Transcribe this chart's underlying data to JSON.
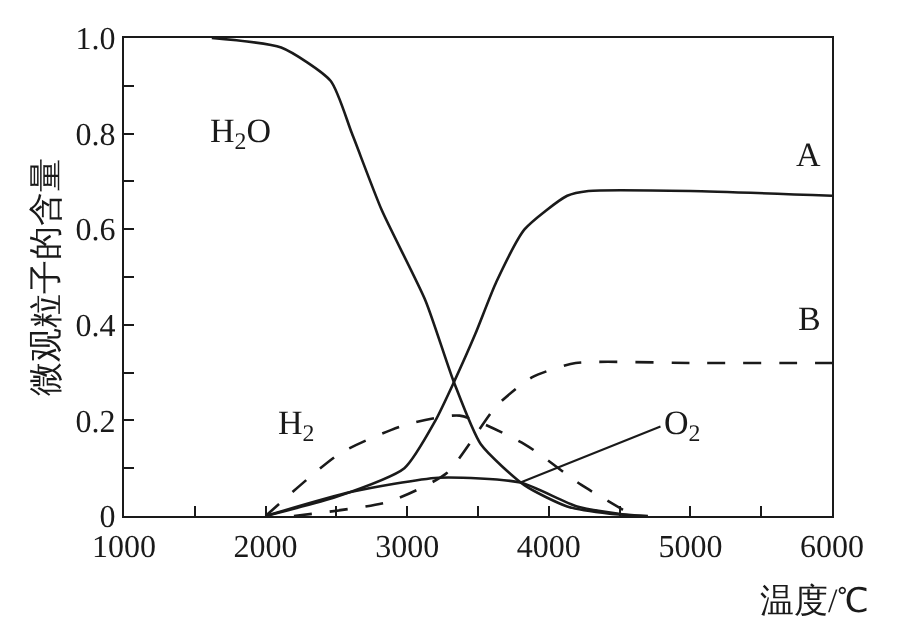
{
  "chart_data": {
    "type": "line",
    "xlabel": "温度/℃",
    "ylabel": "微观粒子的含量",
    "xlim": [
      1000,
      6000
    ],
    "xticks": [
      1000,
      {
        "value": 1500,
        "label": null
      },
      2000,
      {
        "value": 2500,
        "label": null
      },
      3000,
      {
        "value": 3500,
        "label": null
      },
      4000,
      {
        "value": 4500,
        "label": null
      },
      5000,
      {
        "value": 5500,
        "label": null
      },
      6000
    ],
    "ylim": [
      0,
      1.0
    ],
    "yticks": [
      0,
      {
        "value": 0.1,
        "label": null
      },
      0.2,
      {
        "value": 0.3,
        "label": null
      },
      0.4,
      {
        "value": 0.5,
        "label": null
      },
      0.6,
      {
        "value": 0.7,
        "label": null
      },
      0.8,
      {
        "value": 0.9,
        "label": null
      },
      {
        "value": 1.0,
        "label": "1.0"
      }
    ],
    "legend": false,
    "marker": "none",
    "series": [
      {
        "name": "H$_{2}$O",
        "color": "#1a1a1a",
        "line_style": "solid",
        "x": [
          1620,
          2110,
          2460,
          2610,
          2820,
          3130,
          3330,
          3520,
          3830,
          4130,
          4430,
          4700
        ],
        "values": [
          1.0,
          0.98,
          0.91,
          0.8,
          0.64,
          0.45,
          0.28,
          0.15,
          0.064,
          0.02,
          0.005,
          0
        ]
      },
      {
        "name": "A",
        "color": "#1a1a1a",
        "line_style": "solid",
        "x": [
          2000,
          2500,
          2980,
          3200,
          3330,
          3480,
          3630,
          3830,
          4130,
          4280,
          5000,
          6000
        ],
        "values": [
          0,
          0.04,
          0.1,
          0.2,
          0.28,
          0.38,
          0.49,
          0.6,
          0.67,
          0.68,
          0.68,
          0.67
        ]
      },
      {
        "name": "B",
        "color": "#1a1a1a",
        "line_style": "dashed",
        "x": [
          2200,
          2870,
          3280,
          3630,
          3880,
          4190,
          5000,
          6000
        ],
        "values": [
          0,
          0.03,
          0.09,
          0.23,
          0.29,
          0.32,
          0.32,
          0.32
        ]
      },
      {
        "name": "H$_{2}$",
        "color": "#1a1a1a",
        "line_style": "dashed",
        "x": [
          2000,
          2520,
          2980,
          3370,
          3830,
          4230,
          4600
        ],
        "values": [
          0,
          0.13,
          0.19,
          0.21,
          0.15,
          0.065,
          0
        ]
      },
      {
        "name": "O$_{2}$",
        "color": "#1a1a1a",
        "line_style": "solid",
        "x": [
          2000,
          2600,
          3220,
          3800,
          4200,
          4600
        ],
        "values": [
          0,
          0.05,
          0.08,
          0.07,
          0.02,
          0
        ]
      }
    ]
  }
}
